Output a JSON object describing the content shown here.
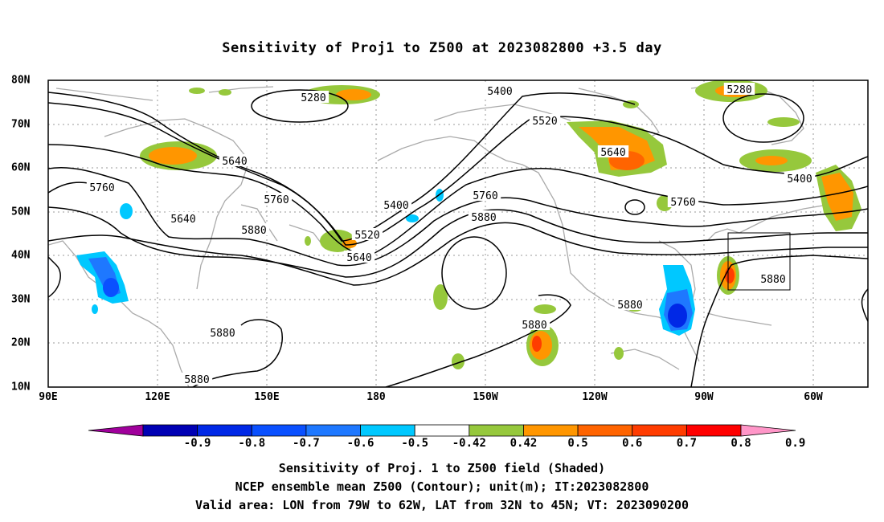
{
  "title": "Sensitivity of Proj1 to Z500 at 2023082800 +3.5 day",
  "lat_ticks": [
    "80N",
    "70N",
    "60N",
    "50N",
    "40N",
    "30N",
    "20N",
    "10N"
  ],
  "lon_ticks": [
    "90E",
    "120E",
    "150E",
    "180",
    "150W",
    "120W",
    "90W",
    "60W"
  ],
  "contour_labels": [
    "5280",
    "5280",
    "5400",
    "5400",
    "5400",
    "5520",
    "5520",
    "5640",
    "5640",
    "5640",
    "5640",
    "5760",
    "5760",
    "5760",
    "5760",
    "5880",
    "5880",
    "5880",
    "5880",
    "5880",
    "5880",
    "5880"
  ],
  "colorbar": {
    "labels": [
      "-0.9",
      "-0.8",
      "-0.7",
      "-0.6",
      "-0.5",
      "-0.42",
      "0.42",
      "0.5",
      "0.6",
      "0.7",
      "0.8",
      "0.9"
    ],
    "colors": [
      "#a0009c",
      "#0000b4",
      "#0028e6",
      "#0a50ff",
      "#1e78ff",
      "#00c8ff",
      "#ffffff",
      "#96c83c",
      "#ff9600",
      "#ff6400",
      "#ff3c00",
      "#ff0000",
      "#ff96c8"
    ]
  },
  "captions": [
    "Sensitivity of Proj. 1 to Z500 field (Shaded)",
    "NCEP ensemble mean Z500 (Contour); unit(m); IT:2023082800",
    "Valid area: LON from 79W to 62W, LAT from 32N to 45N; VT: 2023090200"
  ]
}
